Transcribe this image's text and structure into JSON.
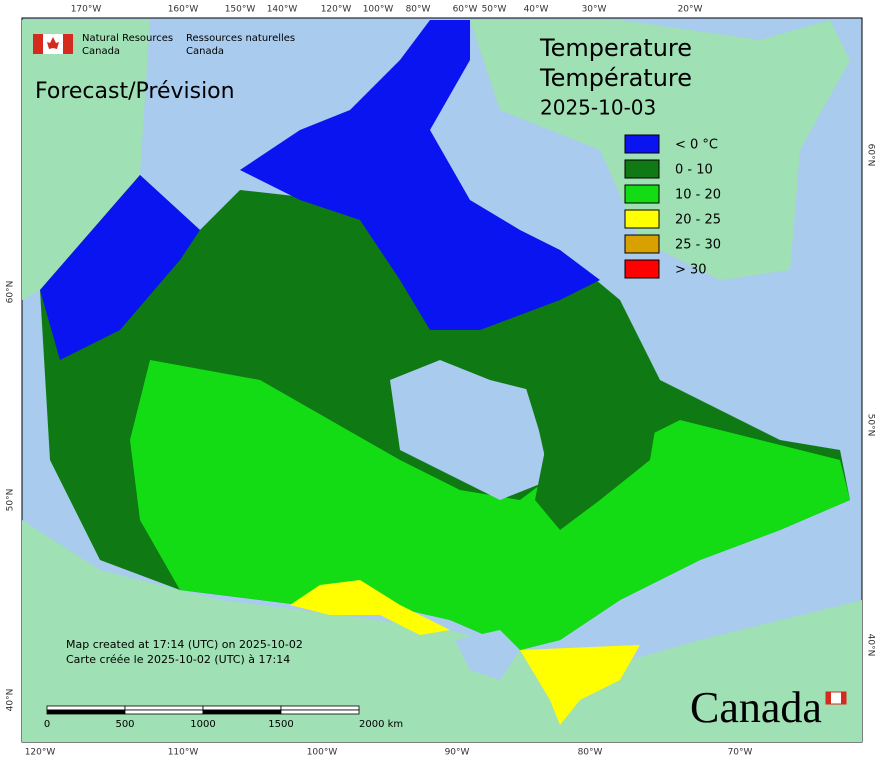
{
  "header": {
    "title_en": "Temperature",
    "title_fr": "Température",
    "date": "2025-10-03",
    "forecast": "Forecast/Prévision"
  },
  "logo": {
    "en_1": "Natural Resources",
    "en_2": "Canada",
    "fr_1": "Ressources naturelles",
    "fr_2": "Canada"
  },
  "legend": [
    {
      "label": "< 0 °C",
      "color": "#0a14f0"
    },
    {
      "label": "0 - 10",
      "color": "#0f7a14"
    },
    {
      "label": "10 - 20",
      "color": "#14dc14"
    },
    {
      "label": "20 - 25",
      "color": "#ffff00"
    },
    {
      "label": "25 - 30",
      "color": "#d9a100"
    },
    {
      "label": "> 30",
      "color": "#ff0000"
    }
  ],
  "graticule": {
    "top": [
      "170°W",
      "160°W",
      "150°W",
      "140°W",
      "120°W",
      "100°W",
      "80°W",
      "60°W",
      "50°W",
      "40°W",
      "30°W",
      "20°W"
    ],
    "bottom": [
      "120°W",
      "110°W",
      "100°W",
      "90°W",
      "80°W",
      "70°W"
    ],
    "left": [
      "60°N",
      "50°N",
      "40°N"
    ],
    "right": [
      "60°N",
      "50°N",
      "40°N"
    ]
  },
  "footnote": [
    "Map created at 17:14 (UTC) on 2025-10-02",
    "Carte créée le 2025-10-02 (UTC) à 17:14"
  ],
  "scale": [
    "0",
    "500",
    "1000",
    "1500",
    "2000 km"
  ],
  "wordmark": "Canada"
}
